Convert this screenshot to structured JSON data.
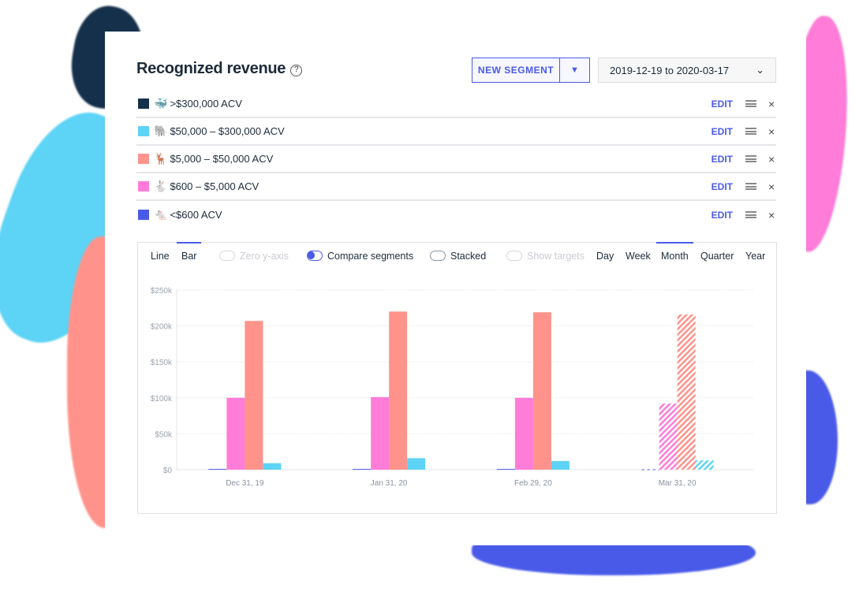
{
  "title": "Recognized revenue",
  "help_icon": "?",
  "new_segment_label": "NEW SEGMENT",
  "dropdown_arrow": "▼",
  "date_range": "2019-12-19 to 2020-03-17",
  "date_chevron": "⌄",
  "segments": [
    {
      "emoji": "🐳",
      "label": ">$300,000 ACV",
      "color": "#15304a",
      "edit": "EDIT",
      "remove": "×"
    },
    {
      "emoji": "🐘",
      "label": "$50,000 – $300,000 ACV",
      "color": "#5dd3f5",
      "edit": "EDIT",
      "remove": "×"
    },
    {
      "emoji": "🦌",
      "label": "$5,000 – $50,000 ACV",
      "color": "#ff938b",
      "edit": "EDIT",
      "remove": "×"
    },
    {
      "emoji": "🐇",
      "label": "$600 – $5,000 ACV",
      "color": "#ff7cd8",
      "edit": "EDIT",
      "remove": "×"
    },
    {
      "emoji": "🐁",
      "label": "<$600 ACV",
      "color": "#4a5ae8",
      "edit": "EDIT",
      "remove": "×"
    }
  ],
  "controls": {
    "line": "Line",
    "bar": "Bar",
    "zero_y": "Zero y-axis",
    "compare": "Compare segments",
    "stacked": "Stacked",
    "targets": "Show targets",
    "day": "Day",
    "week": "Week",
    "month": "Month",
    "quarter": "Quarter",
    "year": "Year"
  },
  "chart_data": {
    "type": "bar",
    "categories": [
      "Dec 31, 19",
      "Jan 31, 20",
      "Feb 29, 20",
      "Mar 31, 20"
    ],
    "ylim": [
      0,
      250000
    ],
    "yticks": [
      "$0",
      "$50k",
      "$100k",
      "$150k",
      "$200k",
      "$250k"
    ],
    "projected_categories": [
      "Mar 31, 20"
    ],
    "series": [
      {
        "name": "<$600 ACV",
        "color": "#4a5ae8",
        "values": [
          1000,
          1000,
          1000,
          500
        ]
      },
      {
        "name": "$600 – $5,000 ACV",
        "color": "#ff7cd8",
        "values": [
          100000,
          101000,
          100000,
          92000
        ]
      },
      {
        "name": "$5,000 – $50,000 ACV",
        "color": "#ff938b",
        "values": [
          207000,
          220000,
          219000,
          216000
        ]
      },
      {
        "name": "$50,000 – $300,000 ACV",
        "color": "#5dd3f5",
        "values": [
          9000,
          16000,
          12000,
          13000
        ]
      }
    ]
  }
}
